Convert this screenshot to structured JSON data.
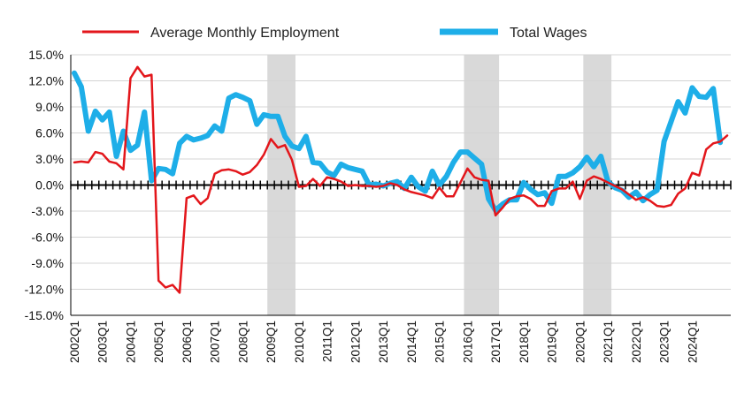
{
  "chart_data": {
    "type": "line",
    "title": "",
    "xlabel": "",
    "ylabel": "",
    "ylim": [
      -15,
      15
    ],
    "y_ticks": [
      "15.0%",
      "12.0%",
      "9.0%",
      "6.0%",
      "3.0%",
      "0.0%",
      "-3.0%",
      "-6.0%",
      "-9.0%",
      "-12.0%",
      "-15.0%"
    ],
    "y_tick_values": [
      15,
      12,
      9,
      6,
      3,
      0,
      -3,
      -6,
      -9,
      -12,
      -15
    ],
    "x_labels": [
      "2002Q1",
      "2003Q1",
      "2004Q1",
      "2005Q1",
      "2006Q1",
      "2007Q1",
      "2008Q1",
      "2009Q1",
      "2010Q1",
      "2011Q1",
      "2012Q1",
      "2013Q1",
      "2014Q1",
      "2015Q1",
      "2016Q1",
      "2017Q1",
      "2018Q1",
      "2019Q1",
      "2020Q1",
      "2021Q1",
      "2022Q1",
      "2023Q1",
      "2024Q1"
    ],
    "x_label_start_index": 0,
    "x_label_step": 4,
    "grid": true,
    "legend_position": "top",
    "recession_shading": [
      {
        "start_index": 28,
        "end_index": 32
      },
      {
        "start_index": 56,
        "end_index": 61
      },
      {
        "start_index": 73,
        "end_index": 77
      }
    ],
    "series": [
      {
        "name": "Average Monthly Employment",
        "color": "#e3161b",
        "values": [
          2.6,
          2.7,
          2.6,
          3.8,
          3.6,
          2.7,
          2.5,
          1.8,
          12.3,
          13.6,
          12.5,
          12.7,
          -11.0,
          -11.8,
          -11.5,
          -12.4,
          -1.5,
          -1.2,
          -2.2,
          -1.5,
          1.3,
          1.7,
          1.8,
          1.6,
          1.2,
          1.5,
          2.3,
          3.5,
          5.3,
          4.3,
          4.6,
          2.9,
          -0.2,
          -0.1,
          0.7,
          -0.1,
          0.9,
          0.7,
          0.4,
          -0.1,
          0.0,
          -0.1,
          -0.1,
          -0.2,
          -0.1,
          0.2,
          0.0,
          -0.5,
          -0.8,
          -1.0,
          -1.2,
          -1.5,
          -0.3,
          -1.3,
          -1.3,
          0.3,
          1.9,
          0.9,
          0.6,
          0.5,
          -3.5,
          -2.6,
          -1.6,
          -1.3,
          -1.2,
          -1.6,
          -2.4,
          -2.4,
          -0.7,
          -0.4,
          -0.4,
          0.4,
          -1.6,
          0.5,
          1.0,
          0.7,
          0.3,
          -0.1,
          -0.5,
          -1.1,
          -1.7,
          -1.4,
          -1.8,
          -2.4,
          -2.5,
          -2.3,
          -1.0,
          -0.4,
          1.4,
          1.1,
          4.1,
          4.8,
          5.0,
          5.7
        ]
      },
      {
        "name": "Total Wages",
        "color": "#1eaee8",
        "values": [
          12.9,
          11.3,
          6.2,
          8.5,
          7.5,
          8.4,
          3.3,
          6.2,
          4.0,
          4.6,
          8.4,
          0.5,
          1.9,
          1.8,
          1.3,
          4.8,
          5.6,
          5.2,
          5.4,
          5.7,
          6.8,
          6.2,
          10.0,
          10.4,
          10.1,
          9.7,
          7.0,
          8.1,
          7.9,
          7.9,
          5.6,
          4.5,
          4.2,
          5.6,
          2.6,
          2.5,
          1.5,
          1.1,
          2.4,
          2.0,
          1.8,
          1.6,
          0.0,
          0.1,
          -0.1,
          0.2,
          0.4,
          -0.4,
          0.9,
          -0.2,
          -0.7,
          1.6,
          0.0,
          1.0,
          2.6,
          3.8,
          3.8,
          3.1,
          2.4,
          -1.6,
          -2.9,
          -2.2,
          -1.7,
          -1.7,
          0.3,
          -0.5,
          -1.1,
          -0.9,
          -2.1,
          1.0,
          1.0,
          1.4,
          2.1,
          3.2,
          2.1,
          3.3,
          0.4,
          -0.3,
          -0.6,
          -1.4,
          -0.8,
          -1.8,
          -1.1,
          -0.6,
          5.0,
          7.3,
          9.6,
          8.3,
          11.2,
          10.2,
          10.1,
          11.1,
          4.9
        ]
      }
    ]
  }
}
